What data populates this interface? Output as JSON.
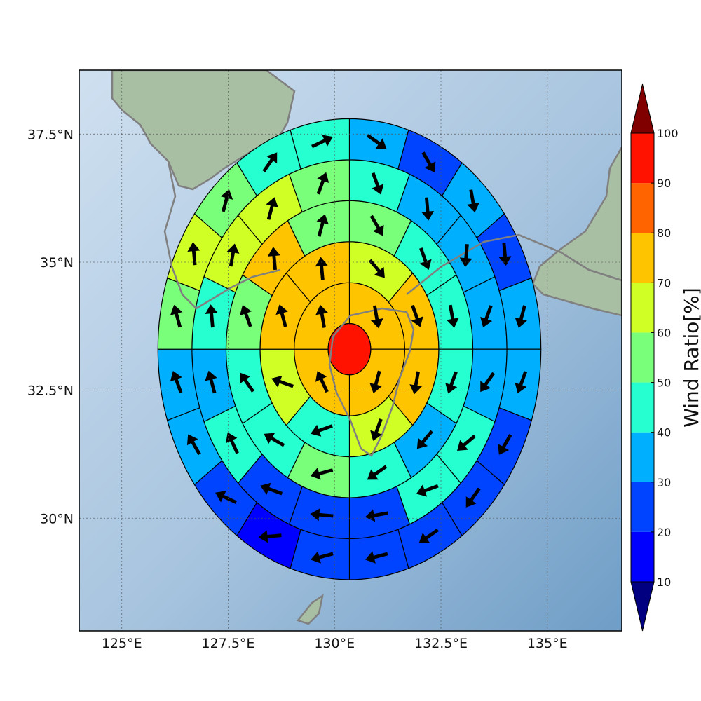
{
  "chart_data": {
    "type": "heatmap",
    "subtype": "polar-sector-map-with-wind-vectors",
    "x_axis": {
      "ticks": [
        125,
        127.5,
        130,
        132.5,
        135
      ],
      "tick_labels": [
        "125°E",
        "127.5°E",
        "130°E",
        "132.5°E",
        "135°E"
      ],
      "range": [
        124.0,
        136.75
      ]
    },
    "y_axis": {
      "ticks": [
        30,
        32.5,
        35,
        37.5
      ],
      "tick_labels": [
        "30°N",
        "32.5°N",
        "35°N",
        "37.5°N"
      ],
      "range": [
        27.8,
        38.75
      ]
    },
    "grid": true,
    "center": {
      "lon": 130.35,
      "lat": 33.3
    },
    "ring_bounds_deg": [
      0.5,
      1.3,
      2.1,
      2.9,
      3.7,
      4.5
    ],
    "center_disk": {
      "ratio": 95,
      "wind_dir_deg": null
    },
    "ring_sector_count": [
      4,
      8,
      12,
      16,
      20
    ],
    "rings": [
      {
        "ratios": [
          72,
          72,
          78,
          78
        ],
        "wind_dir_deg": [
          170,
          195,
          335,
          350
        ]
      },
      {
        "ratios": [
          65,
          72,
          72,
          62,
          48,
          62,
          72,
          72
        ],
        "wind_dir_deg": [
          140,
          160,
          190,
          200,
          250,
          290,
          345,
          355
        ]
      },
      {
        "ratios": [
          58,
          42,
          42,
          42,
          38,
          45,
          52,
          48,
          42,
          58,
          72,
          55
        ],
        "wind_dir_deg": [
          150,
          160,
          170,
          200,
          220,
          235,
          255,
          300,
          325,
          340,
          355,
          15
        ]
      },
      {
        "ratios": [
          45,
          35,
          35,
          32,
          35,
          42,
          45,
          28,
          25,
          22,
          42,
          35,
          42,
          65,
          65,
          52
        ],
        "wind_dir_deg": [
          160,
          175,
          185,
          200,
          215,
          230,
          250,
          260,
          275,
          290,
          335,
          345,
          355,
          10,
          15,
          20
        ]
      },
      {
        "ratios": [
          38,
          25,
          35,
          25,
          32,
          38,
          25,
          28,
          25,
          22,
          22,
          15,
          22,
          38,
          38,
          58,
          65,
          55,
          45,
          45
        ],
        "wind_dir_deg": [
          125,
          150,
          170,
          175,
          195,
          200,
          210,
          215,
          235,
          255,
          255,
          265,
          295,
          330,
          340,
          345,
          355,
          15,
          35,
          65
        ]
      }
    ],
    "colorbar": {
      "label": "Wind Ratio[%]",
      "ticks": [
        10,
        20,
        30,
        40,
        50,
        60,
        70,
        80,
        90,
        100
      ],
      "tick_labels": [
        "10",
        "20",
        "30",
        "40",
        "50",
        "60",
        "70",
        "80",
        "90",
        "100"
      ],
      "bins": [
        0,
        10,
        20,
        30,
        40,
        50,
        60,
        70,
        80,
        90,
        100,
        110
      ],
      "colors": [
        "#000080",
        "#0000ff",
        "#0044ff",
        "#00b0ff",
        "#26ffd0",
        "#7aff7a",
        "#d0ff26",
        "#ffc400",
        "#ff6400",
        "#ff1200",
        "#800000"
      ],
      "extend": "both"
    },
    "colors": {
      "sea_light": "#cfdfef",
      "sea_dark": "#7ba7cc",
      "land": "#a8bfa2",
      "coast": "#808080",
      "edge": "#000000"
    }
  }
}
